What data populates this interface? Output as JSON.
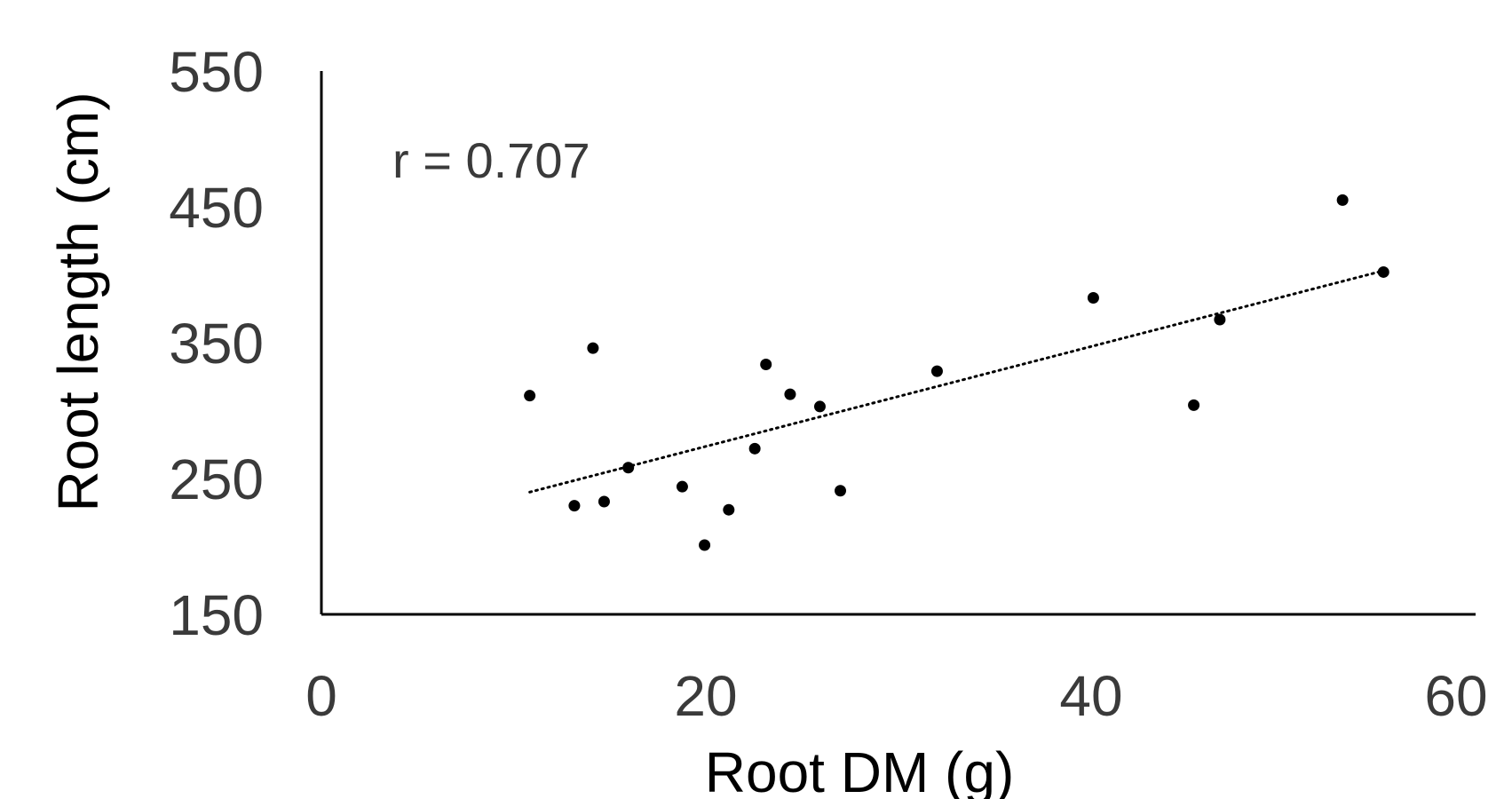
{
  "chart_data": {
    "type": "scatter",
    "title": "",
    "xlabel": "Root DM (g)",
    "ylabel": "Root length (cm)",
    "xlim": [
      0,
      60
    ],
    "ylim": [
      150,
      550
    ],
    "xticks": [
      "0",
      "20",
      "40",
      "60"
    ],
    "yticks": [
      "150",
      "250",
      "350",
      "450",
      "550"
    ],
    "grid": false,
    "legend": "none",
    "annotation": "r = 0.707",
    "colors": {
      "points": "#000000",
      "axis": "#000000",
      "trendline": "#000000",
      "tick_text": "#3a3a3a"
    },
    "series": [
      {
        "x": [
          11.2,
          13.6,
          14.6,
          15.2,
          16.5,
          19.4,
          20.6,
          21.9,
          23.3,
          23.9,
          25.2,
          26.8,
          27.9,
          33.1,
          41.5,
          46.9,
          48.3,
          54.9,
          57.1
        ],
        "y": [
          311,
          230,
          346,
          233,
          258,
          244,
          201,
          227,
          272,
          334,
          312,
          303,
          241,
          329,
          383,
          304,
          367,
          455,
          402
        ]
      }
    ],
    "trendline": {
      "style": "dotted",
      "x": [
        11.2,
        57.1
      ],
      "y": [
        240,
        403
      ]
    }
  }
}
